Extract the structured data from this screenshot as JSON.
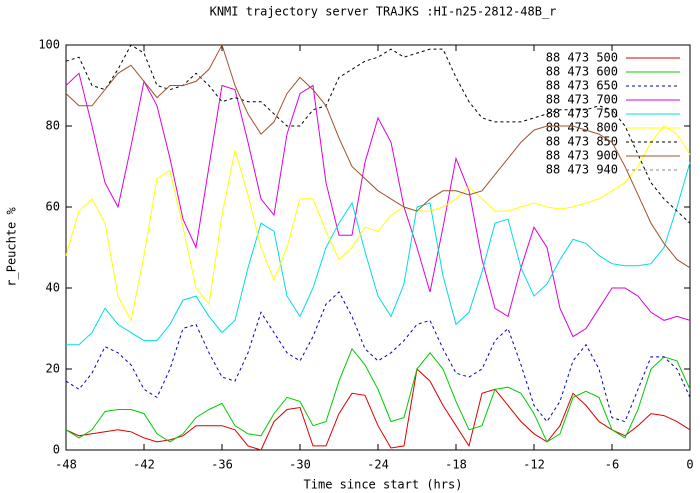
{
  "chart_data": {
    "type": "line",
    "title": "KNMI trajectory server TRAJKS :HI-n25-2812-48B_r",
    "xlabel": "Time since start (hrs)",
    "ylabel": "r_Peuchte %",
    "x": [
      -48,
      -47,
      -46,
      -45,
      -44,
      -43,
      -42,
      -41,
      -40,
      -39,
      -38,
      -37,
      -36,
      -35,
      -34,
      -33,
      -32,
      -31,
      -30,
      -29,
      -28,
      -27,
      -26,
      -25,
      -24,
      -23,
      -22,
      -21,
      -20,
      -19,
      -18,
      -17,
      -16,
      -15,
      -14,
      -13,
      -12,
      -11,
      -10,
      -9,
      -8,
      -7,
      -6,
      -5,
      -4,
      -3,
      -2,
      -1,
      0
    ],
    "xlim": [
      -48,
      0
    ],
    "xticks": [
      -48,
      -42,
      -36,
      -30,
      -24,
      -18,
      -12,
      -6,
      0
    ],
    "ylim": [
      0,
      100
    ],
    "yticks": [
      0,
      20,
      40,
      60,
      80,
      100
    ],
    "legend": "upper right",
    "series": [
      {
        "name": "88 473 500",
        "color": "#dd0000",
        "dash": false,
        "values": [
          5,
          3.5,
          4,
          4.5,
          5,
          4.5,
          3,
          2,
          2.5,
          3.5,
          6,
          6,
          6,
          5,
          1,
          0,
          7,
          10,
          10.5,
          1,
          1,
          9,
          14,
          13.5,
          6,
          0.5,
          1,
          20,
          17,
          11,
          6,
          1,
          14,
          15,
          11,
          7,
          4,
          2,
          6,
          14,
          11,
          7,
          5,
          3.5,
          6,
          9,
          8.5,
          7,
          5
        ]
      },
      {
        "name": "88 473 600",
        "color": "#00cc00",
        "dash": false,
        "values": [
          5,
          3,
          5,
          9.5,
          10,
          10,
          9,
          4,
          2,
          4,
          8,
          10,
          11.5,
          6,
          4,
          3.5,
          9,
          13,
          12,
          6,
          7,
          17,
          25,
          21,
          15,
          7,
          8,
          20,
          24,
          20,
          12,
          5,
          6,
          15,
          15.5,
          14,
          9,
          2,
          4,
          13,
          14.5,
          13,
          5,
          3,
          10,
          20,
          23,
          22,
          15
        ]
      },
      {
        "name": "88 473 650",
        "color": "#0000bb",
        "dash": true,
        "values": [
          17,
          15,
          19,
          25.5,
          24,
          21,
          15,
          13,
          20,
          30,
          31,
          24,
          18,
          17,
          24,
          34,
          29,
          24,
          22,
          28,
          36,
          39,
          33,
          25,
          22,
          24,
          27,
          31,
          32,
          25,
          19,
          18,
          20,
          27,
          30,
          21,
          11,
          7,
          12,
          22,
          26,
          20,
          8,
          7,
          15,
          23,
          23,
          20,
          13
        ]
      },
      {
        "name": "88 473 700",
        "color": "#dd00dd",
        "dash": false,
        "values": [
          90,
          93,
          80,
          66,
          60,
          75,
          91,
          85,
          72,
          57,
          50,
          70,
          90,
          89,
          76,
          62,
          58,
          78,
          88,
          90,
          66,
          53,
          53,
          71,
          82,
          76,
          60,
          50,
          39,
          55,
          72,
          64,
          47,
          35,
          33,
          45,
          55,
          50,
          35,
          28,
          30,
          35,
          40,
          40,
          38,
          34,
          32,
          33,
          32
        ]
      },
      {
        "name": "88 473 750",
        "color": "#00dddd",
        "dash": false,
        "values": [
          26,
          26,
          29,
          35,
          31,
          29,
          27,
          27,
          31,
          37,
          38,
          33,
          29,
          32,
          45,
          56,
          54,
          38,
          33,
          40,
          50,
          56,
          61,
          49,
          38,
          33,
          41,
          60,
          61,
          43,
          31,
          34,
          44,
          56,
          57,
          45,
          38,
          41,
          47,
          52,
          51,
          48,
          46,
          45.5,
          45.5,
          46,
          50,
          60,
          71
        ]
      },
      {
        "name": "88 473 800",
        "color": "#ffff00",
        "dash": false,
        "values": [
          48,
          59,
          62,
          56,
          38,
          32,
          48,
          67,
          69,
          55,
          40,
          36,
          58,
          74,
          63,
          50,
          42,
          50,
          62,
          62,
          54,
          47,
          50,
          55,
          54,
          58,
          60,
          59,
          59,
          60,
          62,
          65,
          62,
          59,
          59,
          60,
          61,
          60,
          59.5,
          60,
          61,
          62,
          64,
          66,
          70,
          76,
          80,
          78,
          73
        ]
      },
      {
        "name": "88 473 850",
        "color": "#000000",
        "dash": true,
        "values": [
          96,
          97,
          90,
          89,
          94,
          100,
          98,
          90,
          89,
          90,
          93,
          90,
          86,
          87,
          86,
          86,
          83,
          80,
          80,
          84,
          85,
          92,
          94,
          96,
          97,
          99,
          97,
          98,
          99,
          99,
          92,
          86,
          82,
          81,
          81,
          81,
          82,
          83,
          84,
          84,
          84,
          85,
          84,
          80,
          73,
          66,
          62,
          59,
          56
        ]
      },
      {
        "name": "88 473 900",
        "color": "#a0522d",
        "dash": false,
        "values": [
          88,
          85,
          85,
          89,
          93,
          95,
          91,
          87,
          90,
          90,
          91,
          94,
          100,
          90,
          83,
          78,
          81,
          88,
          92,
          89,
          85,
          77,
          70,
          67,
          64,
          62,
          60,
          59,
          62,
          64,
          64,
          63,
          64,
          68,
          72,
          76,
          79,
          80,
          80,
          80,
          79,
          78,
          76,
          70,
          63,
          56,
          51,
          47,
          45
        ]
      },
      {
        "name": "88 473 940",
        "color": "#888888",
        "dash": true,
        "values": [
          null,
          null,
          null,
          null,
          null,
          null,
          null,
          null,
          null,
          null,
          null,
          null,
          null,
          null,
          null,
          null,
          null,
          null,
          null,
          null,
          null,
          null,
          null,
          null,
          null,
          null,
          null,
          null,
          null,
          null,
          null,
          null,
          null,
          null,
          null,
          null,
          null,
          null,
          null,
          null,
          null,
          null,
          null,
          null,
          null,
          null,
          null,
          null,
          null
        ]
      }
    ]
  }
}
